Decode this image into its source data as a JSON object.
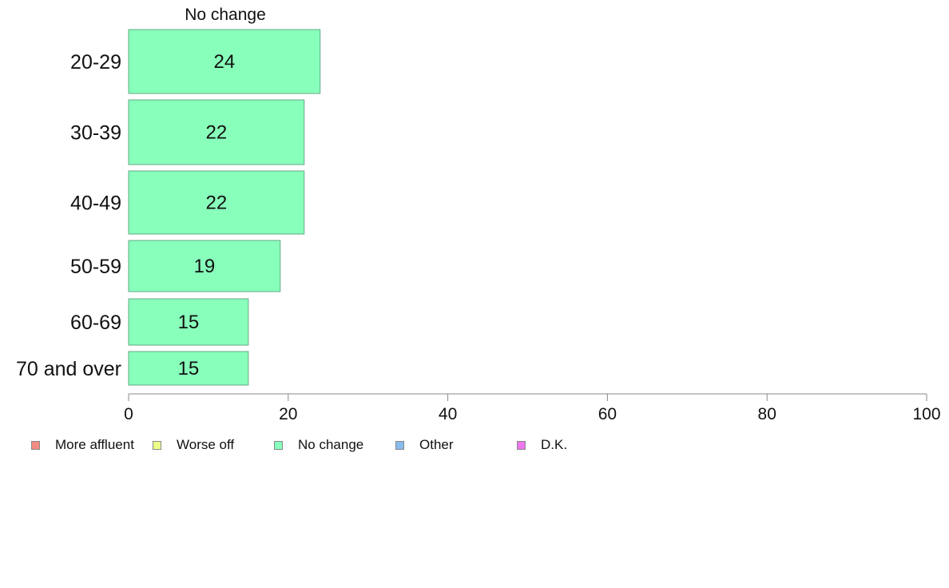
{
  "chart_data": {
    "type": "bar",
    "orientation": "horizontal",
    "title": "No change",
    "categories": [
      "20-29",
      "30-39",
      "40-49",
      "50-59",
      "60-69",
      "70 and over"
    ],
    "series": [
      {
        "name": "No change",
        "values": [
          24,
          22,
          22,
          19,
          15,
          15
        ],
        "data_labels": [
          "24",
          "22",
          "22",
          "19",
          "15",
          "15"
        ]
      }
    ],
    "xlim": [
      0,
      100
    ],
    "xticks": [
      0,
      20,
      40,
      60,
      80,
      100
    ],
    "xlabel": "",
    "ylabel": "",
    "grid": false,
    "legend_placement": "bottom",
    "legend": [
      {
        "label": "More affluent",
        "color": "#f28b82"
      },
      {
        "label": "Worse off",
        "color": "#eeff88"
      },
      {
        "label": "No change",
        "color": "#88ffbb"
      },
      {
        "label": "Other",
        "color": "#88bbee"
      },
      {
        "label": "D.K.",
        "color": "#ee77ee"
      }
    ],
    "colors": {
      "bar": "#88ffbb",
      "bar_border": "#66aa88",
      "axis": "#888888"
    }
  }
}
